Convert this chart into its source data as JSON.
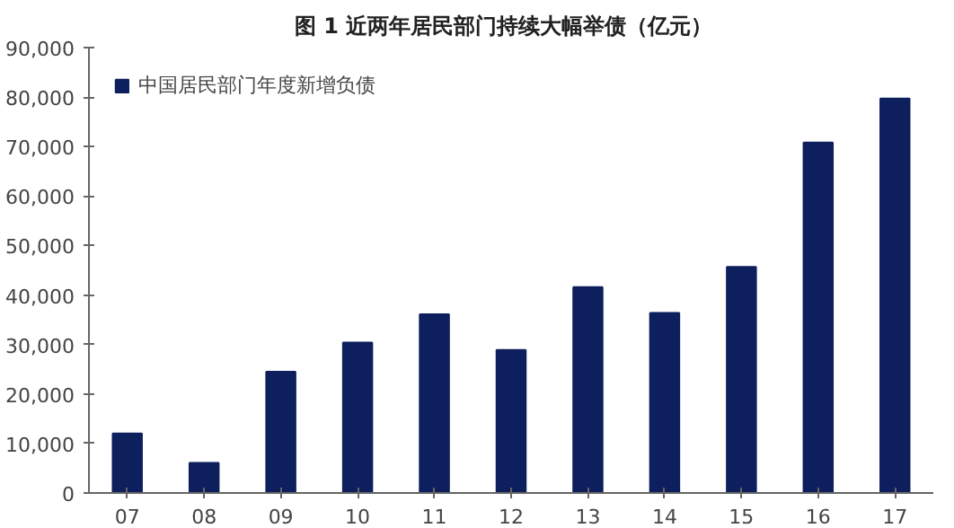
{
  "chart_data": {
    "type": "bar",
    "title": "图 1   近两年居民部门持续大幅举债（亿元）",
    "categories": [
      "07",
      "08",
      "09",
      "10",
      "11",
      "12",
      "13",
      "14",
      "15",
      "16",
      "17"
    ],
    "series": [
      {
        "name": "中国居民部门年度新增负债",
        "color": "#0d1f5c",
        "values": [
          12000,
          6100,
          24500,
          30400,
          36100,
          28900,
          41600,
          36400,
          45700,
          70800,
          79700
        ]
      }
    ],
    "ylim": [
      0,
      90000
    ],
    "yticks": [
      {
        "value": 0,
        "label": "0"
      },
      {
        "value": 10000,
        "label": "10,000"
      },
      {
        "value": 20000,
        "label": "20,000"
      },
      {
        "value": 30000,
        "label": "30,000"
      },
      {
        "value": 40000,
        "label": "40,000"
      },
      {
        "value": 50000,
        "label": "50,000"
      },
      {
        "value": 60000,
        "label": "60,000"
      },
      {
        "value": 70000,
        "label": "70,000"
      },
      {
        "value": 80000,
        "label": "80,000"
      },
      {
        "value": 90000,
        "label": "90,000"
      }
    ],
    "legend": "top left",
    "grid": false
  }
}
